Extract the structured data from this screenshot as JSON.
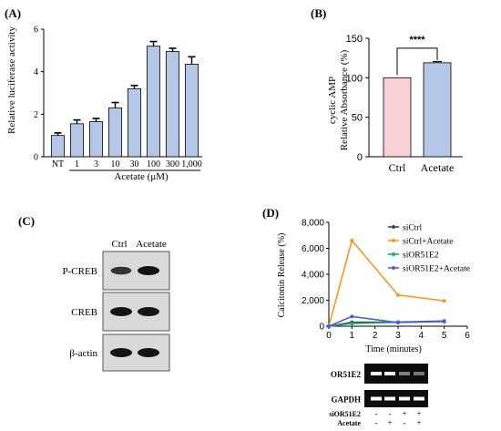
{
  "panels": {
    "A": {
      "letter": "(A)",
      "chart_data": {
        "type": "bar",
        "categories": [
          "NT",
          "1",
          "3",
          "10",
          "30",
          "100",
          "300",
          "1,000"
        ],
        "values": [
          1.0,
          1.55,
          1.65,
          2.3,
          3.2,
          5.2,
          4.95,
          4.35
        ],
        "errors": [
          0.12,
          0.18,
          0.15,
          0.25,
          0.15,
          0.22,
          0.15,
          0.35
        ],
        "ylabel": "Relative luciferase activity",
        "xlabel": "Acetate (μM)",
        "ylim": [
          0,
          6
        ],
        "yticks": [
          "0",
          "2",
          "4",
          "6"
        ],
        "bar_color": "#b4c7e7"
      }
    },
    "B": {
      "letter": "(B)",
      "chart_data": {
        "type": "bar",
        "categories": [
          "Ctrl",
          "Acetate"
        ],
        "values": [
          100,
          119
        ],
        "errors": [
          0,
          1.5
        ],
        "ylabel_line1": "cyclic AMP",
        "ylabel_line2": "Relative Absorbance (%)",
        "ylim": [
          0,
          150
        ],
        "yticks": [
          "0",
          "50",
          "100",
          "150"
        ],
        "significance": "****",
        "bar_colors": [
          "#f8d0d6",
          "#b4c7e7"
        ]
      }
    },
    "C": {
      "letter": "(C)",
      "lanes": [
        "Ctrl",
        "Acetate"
      ],
      "rows": [
        {
          "label": "P-CREB",
          "intensity": [
            0.65,
            1.0
          ]
        },
        {
          "label": "CREB",
          "intensity": [
            1.0,
            1.0
          ]
        },
        {
          "label": "β-actin",
          "intensity": [
            1.0,
            1.0
          ]
        }
      ]
    },
    "D": {
      "letter": "(D)",
      "chart_data": {
        "type": "line",
        "x": [
          0,
          1,
          3,
          5
        ],
        "series": [
          {
            "name": "siCtrl",
            "values": [
              0,
              300,
              320,
              400
            ],
            "color": "#444444"
          },
          {
            "name": "siCtrl+Acetate",
            "values": [
              0,
              6600,
              2400,
              1950
            ],
            "color": "#f39a1c"
          },
          {
            "name": "siOR51E2",
            "values": [
              0,
              200,
              300,
              350
            ],
            "color": "#1aa87a"
          },
          {
            "name": "siOR51E2+Acetate",
            "values": [
              0,
              750,
              280,
              380
            ],
            "color": "#4c5ae8"
          }
        ],
        "ylabel": "Calcitonin Release (%)",
        "xlabel": "Time (minutes)",
        "xlim": [
          0,
          6
        ],
        "ylim": [
          0,
          8000
        ],
        "xticks": [
          "0",
          "1",
          "2",
          "3",
          "4",
          "5",
          "6"
        ],
        "yticks": [
          "0",
          "2,000",
          "4,000",
          "6,000",
          "8,000"
        ]
      },
      "gel": {
        "rows": [
          {
            "label": "OR51E2",
            "bands": [
              1.0,
              0.95,
              0.35,
              0.3
            ]
          },
          {
            "label": "GAPDH",
            "bands": [
              1.0,
              1.0,
              1.0,
              1.0
            ]
          }
        ],
        "conditions": [
          {
            "label": "siOR51E2",
            "signs": [
              "-",
              "-",
              "+",
              "+"
            ]
          },
          {
            "label": "Acetate",
            "signs": [
              "-",
              "+",
              "-",
              "+"
            ]
          }
        ]
      }
    }
  }
}
